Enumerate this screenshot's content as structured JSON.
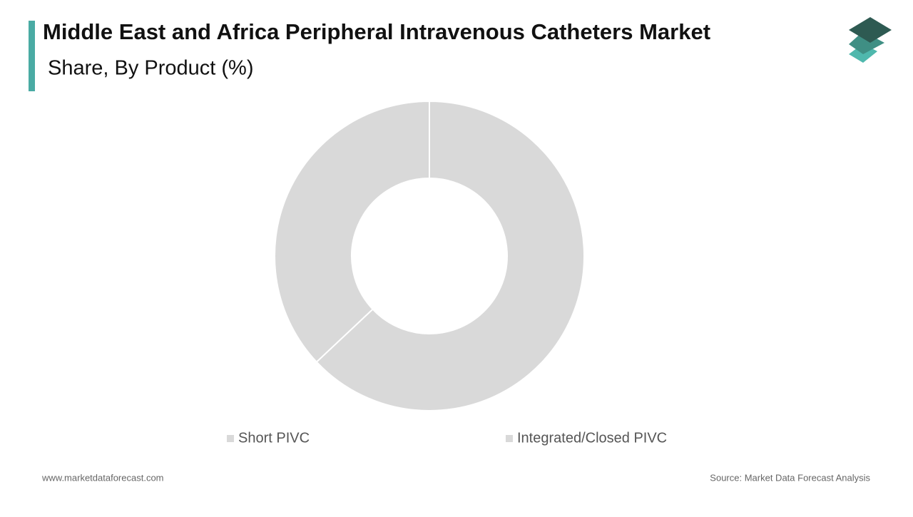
{
  "chart_data": {
    "type": "donut",
    "title": "Middle East and Africa Peripheral Intravenous Catheters Market",
    "subtitle": "Share, By Product (%)",
    "categories": [
      "Short PIVC",
      "Integrated/Closed PIVC"
    ],
    "series": [
      {
        "name": "Share",
        "colors": [
          "#d9d9d9",
          "#d9d9d9"
        ],
        "values": [
          63,
          37
        ]
      }
    ],
    "legend": "bottom"
  },
  "footer": {
    "website": "www.marketdataforecast.com",
    "source": "Source: Market Data Forecast Analysis"
  }
}
